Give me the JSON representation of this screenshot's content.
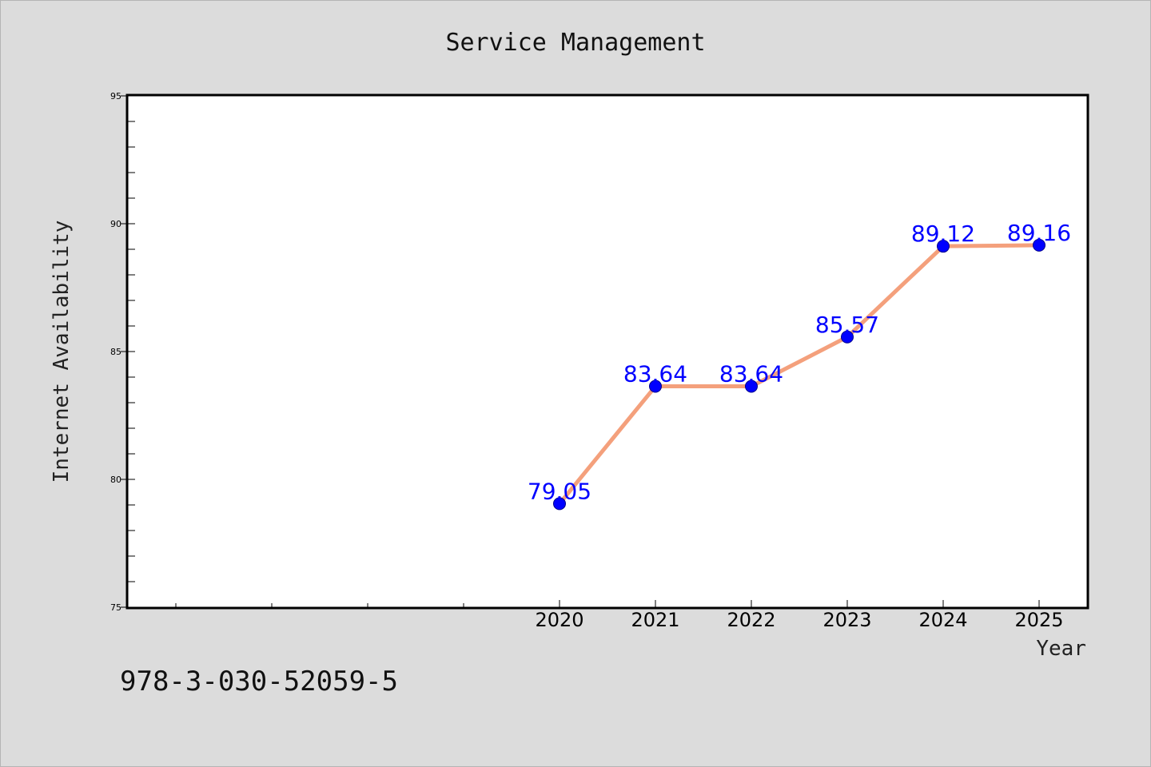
{
  "chart_data": {
    "type": "line",
    "title": "Service Management",
    "xlabel": "Year",
    "ylabel": "Internet Availability",
    "x": [
      "2020",
      "2021",
      "2022",
      "2023",
      "2024",
      "2025"
    ],
    "series": [
      {
        "values": [
          79.05,
          83.64,
          83.64,
          85.57,
          89.12,
          89.16
        ],
        "labels": [
          "79.05",
          "83.64",
          "83.64",
          "85.57",
          "89.12",
          "89.16"
        ]
      }
    ],
    "ylim": [
      75,
      95
    ],
    "yticks": [
      "75",
      "80",
      "85",
      "90",
      "95"
    ],
    "grid": false,
    "legend": "none",
    "colors": {
      "line": "#f4a07c",
      "marker": "#0000ff",
      "label": "#0000ff",
      "background": "#dcdcdc",
      "plot_background": "#ffffff"
    }
  },
  "footer": {
    "isbn": "978-3-030-52059-5"
  }
}
